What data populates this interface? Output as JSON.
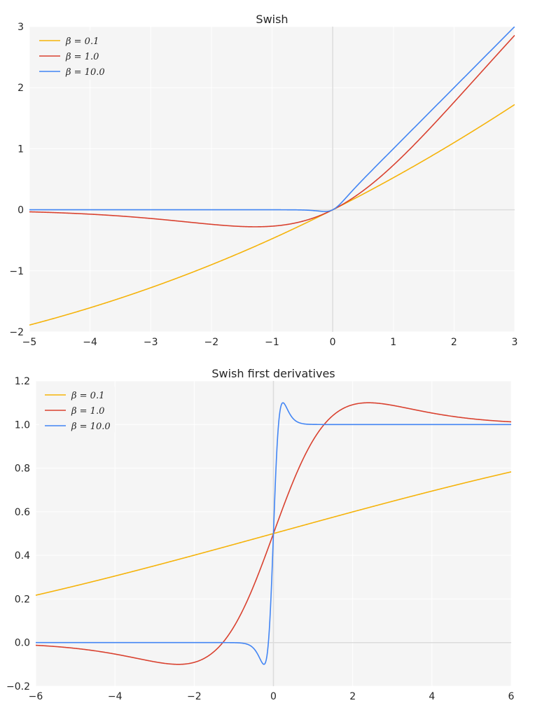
{
  "colors": {
    "beta_0_1": "#f5b30a",
    "beta_1_0": "#d9412f",
    "beta_10_0": "#4285f4",
    "plot_background": "#f5f5f5",
    "grid": "#ffffff",
    "zero_line": "#dcdcdc"
  },
  "chart_data": [
    {
      "type": "line",
      "title": "Swish",
      "function": "swish",
      "xlabel": "",
      "ylabel": "",
      "xlim": [
        -5,
        3
      ],
      "ylim": [
        -2,
        3
      ],
      "grid": true,
      "legend_position": "top-left",
      "x_ticks": [
        -5,
        -4,
        -3,
        -2,
        -1,
        0,
        1,
        2,
        3
      ],
      "x_tick_labels": [
        "−5",
        "−4",
        "−3",
        "−2",
        "−1",
        "0",
        "1",
        "2",
        "3"
      ],
      "y_ticks": [
        -2,
        -1,
        0,
        1,
        2,
        3
      ],
      "y_tick_labels": [
        "−2",
        "−1",
        "0",
        "1",
        "2",
        "3"
      ],
      "series": [
        {
          "name": "β = 0.1",
          "beta": 0.1,
          "color": "#f5b30a",
          "x": [
            -5,
            -4,
            -3,
            -2,
            -1,
            0,
            1,
            2,
            3
          ],
          "y": [
            -1.89,
            -1.6,
            -1.28,
            -0.9,
            -0.48,
            0.0,
            0.52,
            1.1,
            1.72
          ]
        },
        {
          "name": "β = 1.0",
          "beta": 1.0,
          "color": "#d9412f",
          "x": [
            -5,
            -4,
            -3,
            -2,
            -1.28,
            -1,
            0,
            1,
            2,
            3
          ],
          "y": [
            -0.03,
            -0.07,
            -0.14,
            -0.24,
            -0.28,
            -0.27,
            0.0,
            0.73,
            1.76,
            2.86
          ]
        },
        {
          "name": "β = 10.0",
          "beta": 10.0,
          "color": "#4285f4",
          "x": [
            -5,
            -1,
            -0.5,
            -0.13,
            0,
            0.5,
            1,
            2,
            3
          ],
          "y": [
            0.0,
            0.0,
            0.0,
            -0.03,
            0.0,
            0.5,
            1.0,
            2.0,
            3.0
          ]
        }
      ]
    },
    {
      "type": "line",
      "title": "Swish first derivatives",
      "function": "swish_derivative",
      "xlabel": "",
      "ylabel": "",
      "xlim": [
        -6,
        6
      ],
      "ylim": [
        -0.2,
        1.2
      ],
      "grid": true,
      "legend_position": "top-left",
      "x_ticks": [
        -6,
        -4,
        -2,
        0,
        2,
        4,
        6
      ],
      "x_tick_labels": [
        "−6",
        "−4",
        "−2",
        "0",
        "2",
        "4",
        "6"
      ],
      "y_ticks": [
        -0.2,
        0.0,
        0.2,
        0.4,
        0.6,
        0.8,
        1.0,
        1.2
      ],
      "y_tick_labels": [
        "−0.2",
        "0.0",
        "0.2",
        "0.4",
        "0.6",
        "0.8",
        "1.0",
        "1.2"
      ],
      "series": [
        {
          "name": "β = 0.1",
          "beta": 0.1,
          "color": "#f5b30a",
          "x": [
            -6,
            -4,
            -2,
            0,
            2,
            4,
            6
          ],
          "y": [
            0.21,
            0.3,
            0.4,
            0.5,
            0.6,
            0.7,
            0.78
          ]
        },
        {
          "name": "β = 1.0",
          "beta": 1.0,
          "color": "#d9412f",
          "x": [
            -6,
            -4,
            -2.4,
            -1.28,
            0,
            1.28,
            2.4,
            4,
            6
          ],
          "y": [
            -0.01,
            -0.05,
            -0.1,
            0.0,
            0.5,
            1.0,
            1.1,
            1.05,
            1.01
          ]
        },
        {
          "name": "β = 10.0",
          "beta": 10.0,
          "color": "#4285f4",
          "x": [
            -6,
            -0.5,
            -0.24,
            0,
            0.24,
            0.5,
            6
          ],
          "y": [
            0.0,
            -0.01,
            -0.1,
            0.5,
            1.1,
            1.01,
            1.0
          ]
        }
      ]
    }
  ]
}
